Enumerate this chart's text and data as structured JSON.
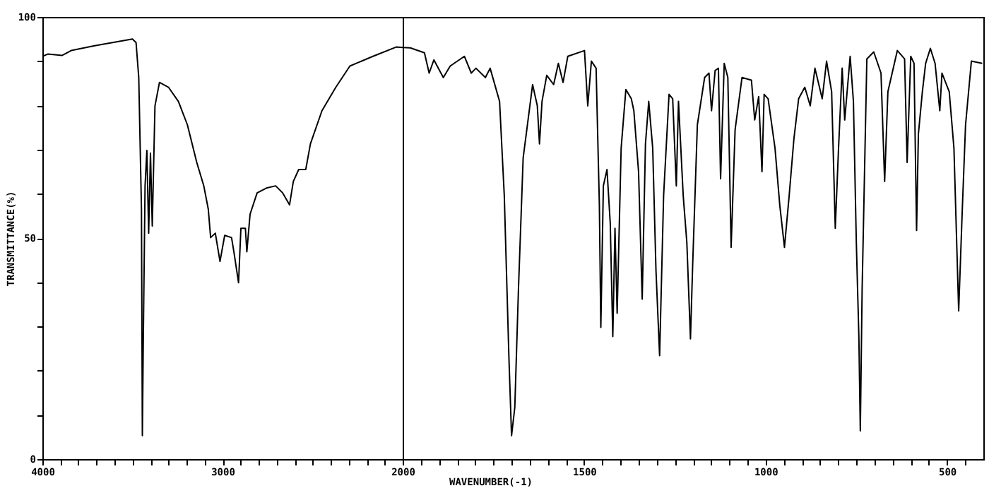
{
  "chart_data": [
    {
      "type": "line",
      "ylabel": "TRANSMITTANCE(%)",
      "xlim": [
        4000,
        2000
      ],
      "xticks": [
        4000,
        {
          "value": 3900,
          "label": null
        },
        {
          "value": 3800,
          "label": null
        },
        {
          "value": 3700,
          "label": null
        },
        {
          "value": 3600,
          "label": null
        },
        {
          "value": 3500,
          "label": null
        },
        {
          "value": 3400,
          "label": null
        },
        {
          "value": 3300,
          "label": null
        },
        {
          "value": 3200,
          "label": null
        },
        {
          "value": 3100,
          "label": null
        },
        3000,
        {
          "value": 2900,
          "label": null
        },
        {
          "value": 2800,
          "label": null
        },
        {
          "value": 2700,
          "label": null
        },
        {
          "value": 2600,
          "label": null
        },
        {
          "value": 2500,
          "label": null
        },
        {
          "value": 2400,
          "label": null
        },
        {
          "value": 2300,
          "label": null
        },
        {
          "value": 2200,
          "label": null
        },
        {
          "value": 2100,
          "label": null
        },
        2000
      ],
      "ylim": [
        0,
        100
      ],
      "yticks": [
        0,
        {
          "value": 10,
          "label": null
        },
        {
          "value": 20,
          "label": null
        },
        {
          "value": 30,
          "label": null
        },
        {
          "value": 40,
          "label": null
        },
        50,
        {
          "value": 60,
          "label": null
        },
        {
          "value": 70,
          "label": null
        },
        {
          "value": 80,
          "label": null
        },
        {
          "value": 90,
          "label": null
        },
        100
      ],
      "x": [
        4000,
        3970,
        3890,
        3840,
        3710,
        3500,
        3480,
        3465,
        3450,
        3445,
        3440,
        3430,
        3420,
        3410,
        3400,
        3390,
        3375,
        3350,
        3300,
        3245,
        3195,
        3143,
        3104,
        3079,
        3066,
        3040,
        3014,
        2988,
        2950,
        2937,
        2911,
        2898,
        2873,
        2865,
        2847,
        2808,
        2757,
        2705,
        2666,
        2628,
        2607,
        2577,
        2538,
        2512,
        2448,
        2371,
        2293,
        2165,
        2036,
        2000
      ],
      "series": [
        {
          "color": "#000000",
          "values": [
            91.1,
            91.6,
            91.3,
            92.4,
            93.5,
            95,
            94.2,
            86.3,
            56.5,
            5.3,
            26.1,
            61.8,
            69.8,
            51.1,
            69.2,
            52.7,
            79.9,
            85.2,
            84.1,
            80.9,
            75.6,
            67.1,
            61.8,
            56.5,
            50.1,
            51.1,
            44.7,
            50.6,
            50.1,
            46.9,
            39.9,
            52.2,
            52.2,
            46.9,
            55.4,
            60.2,
            61.3,
            61.8,
            60.2,
            57.5,
            62.8,
            65.5,
            65.5,
            71.3,
            78.8,
            84.1,
            88.9,
            91.1,
            93.2,
            93.1
          ]
        }
      ]
    },
    {
      "type": "line",
      "xlabel": "WAVENUMBER(-1)",
      "tick_labels": "x",
      "xlim": [
        2000,
        400
      ],
      "xticks": [
        {
          "value": 1950,
          "label": null
        },
        {
          "value": 1900,
          "label": null
        },
        {
          "value": 1850,
          "label": null
        },
        {
          "value": 1800,
          "label": null
        },
        {
          "value": 1750,
          "label": null
        },
        {
          "value": 1700,
          "label": null
        },
        {
          "value": 1650,
          "label": null
        },
        {
          "value": 1600,
          "label": null
        },
        {
          "value": 1550,
          "label": null
        },
        1500,
        {
          "value": 1450,
          "label": null
        },
        {
          "value": 1400,
          "label": null
        },
        {
          "value": 1350,
          "label": null
        },
        {
          "value": 1300,
          "label": null
        },
        {
          "value": 1250,
          "label": null
        },
        {
          "value": 1200,
          "label": null
        },
        {
          "value": 1150,
          "label": null
        },
        {
          "value": 1100,
          "label": null
        },
        {
          "value": 1050,
          "label": null
        },
        1000,
        {
          "value": 950,
          "label": null
        },
        {
          "value": 900,
          "label": null
        },
        {
          "value": 850,
          "label": null
        },
        {
          "value": 800,
          "label": null
        },
        {
          "value": 750,
          "label": null
        },
        {
          "value": 700,
          "label": null
        },
        {
          "value": 650,
          "label": null
        },
        {
          "value": 600,
          "label": null
        },
        {
          "value": 550,
          "label": null
        },
        500,
        {
          "value": 450,
          "label": null
        }
      ],
      "ylim": [
        0,
        100
      ],
      "x": [
        2000,
        1979,
        1940,
        1927,
        1914,
        1888,
        1869,
        1830,
        1811,
        1798,
        1772,
        1759,
        1733,
        1720,
        1707,
        1700,
        1691,
        1681,
        1668,
        1642,
        1629,
        1623,
        1616,
        1603,
        1584,
        1571,
        1558,
        1545,
        1499,
        1490,
        1480,
        1467,
        1458,
        1454,
        1447,
        1437,
        1428,
        1421,
        1415,
        1409,
        1398,
        1385,
        1370,
        1363,
        1350,
        1340,
        1331,
        1322,
        1311,
        1302,
        1292,
        1281,
        1266,
        1256,
        1246,
        1240,
        1227,
        1217,
        1207,
        1201,
        1188,
        1168,
        1156,
        1149,
        1139,
        1130,
        1124,
        1114,
        1104,
        1095,
        1084,
        1065,
        1039,
        1030,
        1019,
        1010,
        1004,
        993,
        974,
        961,
        948,
        935,
        922,
        909,
        892,
        877,
        864,
        844,
        832,
        818,
        808,
        799,
        789,
        782,
        767,
        758,
        750,
        743,
        739,
        734,
        721,
        702,
        682,
        672,
        663,
        637,
        617,
        610,
        600,
        591,
        584,
        579,
        568,
        559,
        546,
        533,
        520,
        514,
        494,
        481,
        468,
        458,
        449,
        433,
        403
      ],
      "series": [
        {
          "color": "#000000",
          "values": [
            93.1,
            93,
            91.9,
            87.3,
            90.3,
            86.3,
            88.9,
            91.1,
            87.3,
            88.4,
            86.3,
            88.4,
            80.9,
            59.6,
            22.4,
            5.3,
            11.7,
            38.3,
            68.1,
            84.7,
            79.9,
            71.3,
            80.9,
            86.8,
            84.7,
            89.5,
            85.2,
            91.1,
            92.4,
            79.9,
            90,
            88.4,
            57.5,
            29.8,
            61.8,
            65.5,
            53.3,
            27.7,
            52.2,
            33,
            70.3,
            83.6,
            81.5,
            78.8,
            65,
            36.2,
            71.3,
            80.9,
            70.3,
            42.6,
            23.4,
            59.6,
            82.5,
            81.5,
            61.8,
            80.9,
            59.6,
            49,
            27.2,
            43.7,
            75.6,
            86.3,
            87.3,
            78.8,
            87.9,
            88.4,
            63.4,
            89.5,
            86.3,
            47.9,
            74.5,
            86.3,
            85.7,
            76.7,
            82,
            65,
            82.5,
            81.5,
            70.3,
            57.5,
            47.9,
            59.6,
            72.4,
            81.5,
            84.1,
            79.9,
            88.4,
            81.5,
            90,
            83.1,
            52.2,
            70.3,
            88.4,
            76.7,
            91.1,
            80.9,
            49,
            27.7,
            6.4,
            38.3,
            90.5,
            92.1,
            87.3,
            62.8,
            83.1,
            92.4,
            90.5,
            67.1,
            91.1,
            89.5,
            51.7,
            73.5,
            83.1,
            89.5,
            92.9,
            89.5,
            78.8,
            87.3,
            83.1,
            70.3,
            33.5,
            56.5,
            75.6,
            90,
            89.5
          ]
        }
      ]
    }
  ]
}
